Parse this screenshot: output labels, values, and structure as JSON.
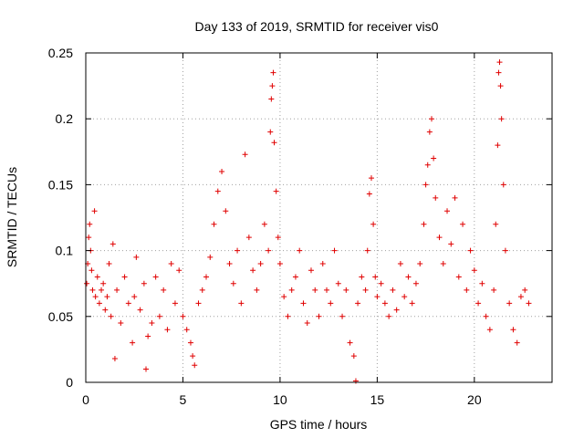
{
  "chart_data": {
    "type": "scatter",
    "title": "Day 133 of 2019, SRMTID for receiver vis0",
    "xlabel": "GPS time / hours",
    "ylabel": "SRMTID / TECUs",
    "xlim": [
      0,
      24
    ],
    "ylim": [
      0,
      0.25
    ],
    "grid": true,
    "marker": "+",
    "marker_color": "#e00000",
    "x_ticks": [
      {
        "value": 0,
        "label": "0"
      },
      {
        "value": 5,
        "label": "5"
      },
      {
        "value": 10,
        "label": "10"
      },
      {
        "value": 15,
        "label": "15"
      },
      {
        "value": 20,
        "label": "20"
      }
    ],
    "y_ticks": [
      {
        "value": 0,
        "label": "0"
      },
      {
        "value": 0.05,
        "label": "0.05"
      },
      {
        "value": 0.1,
        "label": "0.1"
      },
      {
        "value": 0.15,
        "label": "0.15"
      },
      {
        "value": 0.2,
        "label": "0.2"
      },
      {
        "value": 0.25,
        "label": "0.25"
      }
    ],
    "series": [
      {
        "name": "SRMTID",
        "points": [
          [
            0.05,
            0.075
          ],
          [
            0.1,
            0.09
          ],
          [
            0.15,
            0.11
          ],
          [
            0.2,
            0.12
          ],
          [
            0.25,
            0.1
          ],
          [
            0.3,
            0.085
          ],
          [
            0.35,
            0.07
          ],
          [
            0.45,
            0.13
          ],
          [
            0.5,
            0.065
          ],
          [
            0.6,
            0.08
          ],
          [
            0.7,
            0.06
          ],
          [
            0.8,
            0.07
          ],
          [
            0.9,
            0.075
          ],
          [
            1.0,
            0.055
          ],
          [
            1.1,
            0.065
          ],
          [
            1.2,
            0.09
          ],
          [
            1.3,
            0.05
          ],
          [
            1.4,
            0.105
          ],
          [
            1.5,
            0.018
          ],
          [
            1.6,
            0.07
          ],
          [
            1.8,
            0.045
          ],
          [
            2.0,
            0.08
          ],
          [
            2.2,
            0.06
          ],
          [
            2.4,
            0.03
          ],
          [
            2.5,
            0.065
          ],
          [
            2.6,
            0.095
          ],
          [
            2.8,
            0.055
          ],
          [
            3.0,
            0.075
          ],
          [
            3.1,
            0.01
          ],
          [
            3.2,
            0.035
          ],
          [
            3.4,
            0.045
          ],
          [
            3.6,
            0.08
          ],
          [
            3.8,
            0.05
          ],
          [
            4.0,
            0.07
          ],
          [
            4.2,
            0.04
          ],
          [
            4.4,
            0.09
          ],
          [
            4.6,
            0.06
          ],
          [
            4.8,
            0.085
          ],
          [
            5.0,
            0.05
          ],
          [
            5.2,
            0.04
          ],
          [
            5.4,
            0.03
          ],
          [
            5.5,
            0.02
          ],
          [
            5.6,
            0.013
          ],
          [
            5.8,
            0.06
          ],
          [
            6.0,
            0.07
          ],
          [
            6.2,
            0.08
          ],
          [
            6.4,
            0.095
          ],
          [
            6.6,
            0.12
          ],
          [
            6.8,
            0.145
          ],
          [
            7.0,
            0.16
          ],
          [
            7.2,
            0.13
          ],
          [
            7.4,
            0.09
          ],
          [
            7.6,
            0.075
          ],
          [
            7.8,
            0.1
          ],
          [
            8.0,
            0.06
          ],
          [
            8.2,
            0.173
          ],
          [
            8.4,
            0.11
          ],
          [
            8.6,
            0.085
          ],
          [
            8.8,
            0.07
          ],
          [
            9.0,
            0.09
          ],
          [
            9.2,
            0.12
          ],
          [
            9.4,
            0.1
          ],
          [
            9.5,
            0.19
          ],
          [
            9.55,
            0.215
          ],
          [
            9.6,
            0.225
          ],
          [
            9.65,
            0.235
          ],
          [
            9.7,
            0.182
          ],
          [
            9.8,
            0.145
          ],
          [
            9.9,
            0.11
          ],
          [
            10.0,
            0.09
          ],
          [
            10.2,
            0.065
          ],
          [
            10.4,
            0.05
          ],
          [
            10.6,
            0.07
          ],
          [
            10.8,
            0.08
          ],
          [
            11.0,
            0.1
          ],
          [
            11.2,
            0.06
          ],
          [
            11.4,
            0.045
          ],
          [
            11.6,
            0.085
          ],
          [
            11.8,
            0.07
          ],
          [
            12.0,
            0.05
          ],
          [
            12.2,
            0.09
          ],
          [
            12.4,
            0.07
          ],
          [
            12.6,
            0.06
          ],
          [
            12.8,
            0.1
          ],
          [
            13.0,
            0.075
          ],
          [
            13.2,
            0.05
          ],
          [
            13.4,
            0.07
          ],
          [
            13.6,
            0.03
          ],
          [
            13.8,
            0.02
          ],
          [
            13.9,
            0.001
          ],
          [
            14.0,
            0.06
          ],
          [
            14.2,
            0.08
          ],
          [
            14.4,
            0.07
          ],
          [
            14.5,
            0.1
          ],
          [
            14.6,
            0.143
          ],
          [
            14.7,
            0.155
          ],
          [
            14.8,
            0.12
          ],
          [
            14.9,
            0.08
          ],
          [
            15.0,
            0.065
          ],
          [
            15.2,
            0.075
          ],
          [
            15.4,
            0.06
          ],
          [
            15.6,
            0.05
          ],
          [
            15.8,
            0.07
          ],
          [
            16.0,
            0.055
          ],
          [
            16.2,
            0.09
          ],
          [
            16.4,
            0.065
          ],
          [
            16.6,
            0.08
          ],
          [
            16.8,
            0.06
          ],
          [
            17.0,
            0.075
          ],
          [
            17.2,
            0.09
          ],
          [
            17.4,
            0.12
          ],
          [
            17.5,
            0.15
          ],
          [
            17.6,
            0.165
          ],
          [
            17.7,
            0.19
          ],
          [
            17.8,
            0.2
          ],
          [
            17.9,
            0.17
          ],
          [
            18.0,
            0.14
          ],
          [
            18.2,
            0.11
          ],
          [
            18.4,
            0.09
          ],
          [
            18.6,
            0.13
          ],
          [
            18.8,
            0.105
          ],
          [
            19.0,
            0.14
          ],
          [
            19.2,
            0.08
          ],
          [
            19.4,
            0.12
          ],
          [
            19.6,
            0.07
          ],
          [
            19.8,
            0.1
          ],
          [
            20.0,
            0.085
          ],
          [
            20.2,
            0.06
          ],
          [
            20.4,
            0.075
          ],
          [
            20.6,
            0.05
          ],
          [
            20.8,
            0.04
          ],
          [
            21.0,
            0.07
          ],
          [
            21.1,
            0.12
          ],
          [
            21.2,
            0.18
          ],
          [
            21.25,
            0.235
          ],
          [
            21.3,
            0.243
          ],
          [
            21.35,
            0.225
          ],
          [
            21.4,
            0.2
          ],
          [
            21.5,
            0.15
          ],
          [
            21.6,
            0.1
          ],
          [
            21.8,
            0.06
          ],
          [
            22.0,
            0.04
          ],
          [
            22.2,
            0.03
          ],
          [
            22.4,
            0.065
          ],
          [
            22.6,
            0.07
          ],
          [
            22.8,
            0.06
          ]
        ]
      }
    ]
  }
}
